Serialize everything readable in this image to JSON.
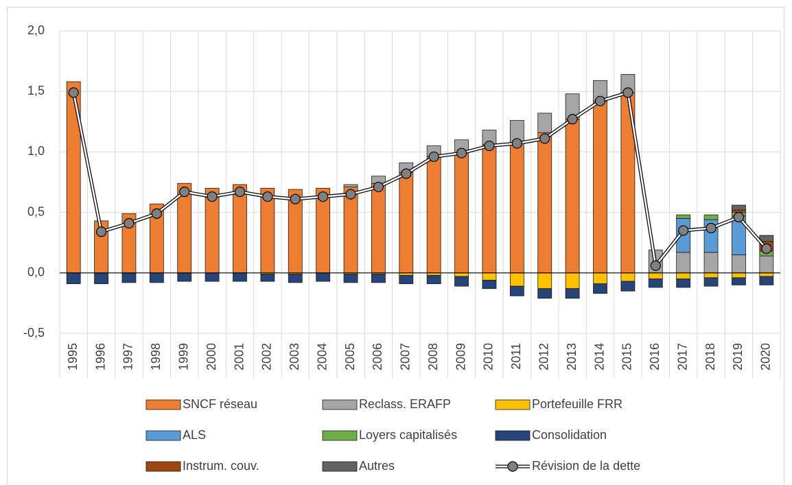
{
  "chart_data": {
    "type": "bar",
    "stacked": true,
    "legend": "bottom",
    "grid": true,
    "categories": [
      "1995",
      "1996",
      "1997",
      "1998",
      "1999",
      "2000",
      "2001",
      "2002",
      "2003",
      "2004",
      "2005",
      "2006",
      "2007",
      "2008",
      "2009",
      "2010",
      "2011",
      "2012",
      "2013",
      "2014",
      "2015",
      "2016",
      "2017",
      "2018",
      "2019",
      "2020"
    ],
    "ylim": [
      -0.5,
      2.0
    ],
    "yticks": [
      {
        "value": -0.5,
        "label": "-0,5"
      },
      {
        "value": 0,
        "label": "0,0"
      },
      {
        "value": 0.5,
        "label": "0,5"
      },
      {
        "value": 1.0,
        "label": "1,0"
      },
      {
        "value": 1.5,
        "label": "1,5"
      },
      {
        "value": 2.0,
        "label": "2,0"
      }
    ],
    "series": [
      {
        "name": "SNCF réseau",
        "color": "#ED7D31",
        "values": [
          1.58,
          0.43,
          0.49,
          0.57,
          0.74,
          0.7,
          0.73,
          0.7,
          0.69,
          0.7,
          0.71,
          0.74,
          0.83,
          0.96,
          0.99,
          1.06,
          1.07,
          1.16,
          1.27,
          1.42,
          1.49,
          0,
          0,
          0,
          0,
          0
        ]
      },
      {
        "name": "Reclass. ERAFP",
        "color": "#A5A5A5",
        "values": [
          0,
          0,
          0,
          0,
          0,
          0,
          0,
          0,
          0,
          0,
          0.02,
          0.06,
          0.08,
          0.09,
          0.11,
          0.12,
          0.19,
          0.16,
          0.21,
          0.17,
          0.15,
          0.19,
          0.17,
          0.17,
          0.15,
          0.14
        ]
      },
      {
        "name": "Portefeuille FRR",
        "color": "#FFC000",
        "values": [
          0,
          0,
          0,
          0,
          0,
          0,
          0,
          -0.01,
          -0.01,
          0,
          -0.01,
          -0.01,
          -0.02,
          -0.02,
          -0.03,
          -0.06,
          -0.11,
          -0.13,
          -0.13,
          -0.09,
          -0.07,
          -0.05,
          -0.05,
          -0.04,
          -0.04,
          -0.03
        ]
      },
      {
        "name": "ALS",
        "color": "#5B9BD5",
        "values": [
          0,
          0,
          0,
          0,
          0,
          0,
          0,
          0,
          0,
          0,
          0,
          0,
          0,
          0,
          0,
          0,
          0,
          0,
          0,
          0,
          0,
          0,
          0.28,
          0.27,
          0.32,
          0
        ]
      },
      {
        "name": "Loyers capitalisés",
        "color": "#70AD47",
        "values": [
          0,
          0,
          0,
          0,
          0,
          0,
          0,
          0,
          0,
          0,
          0,
          0,
          0,
          0,
          0,
          0,
          0,
          0,
          0,
          0,
          0,
          0,
          0.03,
          0.04,
          0.03,
          0.04
        ]
      },
      {
        "name": "Consolidation",
        "color": "#264478",
        "values": [
          -0.09,
          -0.09,
          -0.08,
          -0.08,
          -0.07,
          -0.07,
          -0.07,
          -0.06,
          -0.07,
          -0.07,
          -0.07,
          -0.07,
          -0.07,
          -0.07,
          -0.08,
          -0.07,
          -0.08,
          -0.08,
          -0.08,
          -0.08,
          -0.08,
          -0.07,
          -0.07,
          -0.07,
          -0.06,
          -0.07
        ]
      },
      {
        "name": "Instrum.  couv.",
        "color": "#9E480E",
        "values": [
          0,
          0,
          0,
          0,
          0,
          0,
          0,
          0,
          0,
          0,
          0,
          0,
          0,
          0,
          0,
          0,
          0,
          0,
          0,
          0,
          0,
          0,
          0,
          0,
          0.02,
          0.08
        ]
      },
      {
        "name": "Autres",
        "color": "#636363",
        "values": [
          0,
          0,
          0,
          0,
          0,
          0,
          0,
          0,
          0,
          0,
          0,
          0,
          0,
          0,
          0,
          0,
          0,
          0,
          0,
          0,
          0,
          0,
          0,
          0,
          0.04,
          0.05
        ]
      },
      {
        "name": "Révision de la dette",
        "type": "line",
        "color": "#808080",
        "values": [
          1.49,
          0.34,
          0.41,
          0.49,
          0.67,
          0.63,
          0.67,
          0.63,
          0.61,
          0.63,
          0.65,
          0.71,
          0.82,
          0.96,
          0.99,
          1.05,
          1.07,
          1.11,
          1.27,
          1.42,
          1.49,
          0.06,
          0.35,
          0.37,
          0.46,
          0.2
        ]
      }
    ]
  }
}
